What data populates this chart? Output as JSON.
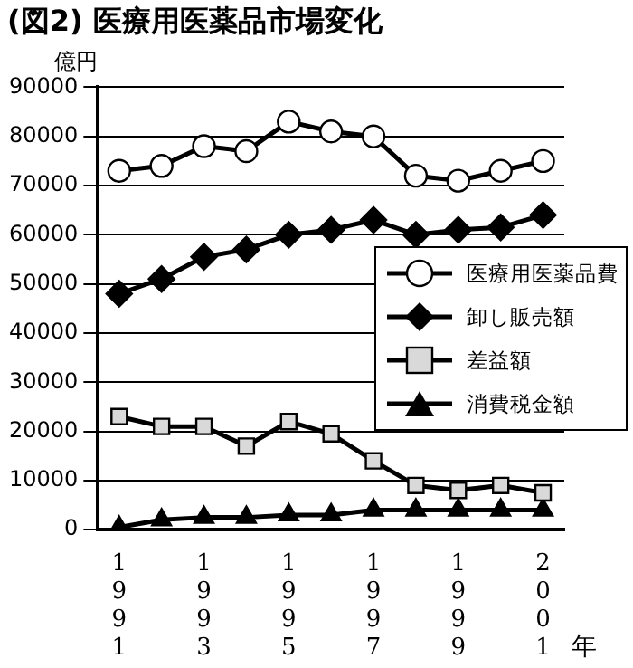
{
  "chart_data": {
    "type": "line",
    "title": "(図2) 医療用医薬品市場変化",
    "ylabel": "億円",
    "xlabel": "年",
    "categories": [
      "1991",
      null,
      "1993",
      null,
      "1995",
      null,
      "1997",
      null,
      "1999",
      null,
      "2001"
    ],
    "series": [
      {
        "name": "医療用医薬品費",
        "color": "#000000",
        "marker": "circle",
        "values": [
          73000,
          74000,
          78000,
          77000,
          83000,
          81000,
          80000,
          72000,
          71000,
          73000,
          75000
        ]
      },
      {
        "name": "卸し販売額",
        "color": "#000000",
        "marker": "diamond",
        "values": [
          48000,
          51000,
          55500,
          57000,
          60000,
          61000,
          63000,
          60000,
          61000,
          61500,
          64000
        ]
      },
      {
        "name": "差益額",
        "color": "#000000",
        "marker": "square",
        "values": [
          23000,
          21000,
          21000,
          17000,
          22000,
          19500,
          14000,
          9000,
          8000,
          9000,
          7500
        ]
      },
      {
        "name": "消費税金額",
        "color": "#000000",
        "marker": "triangle",
        "values": [
          500,
          2000,
          2500,
          2500,
          3000,
          3000,
          4000,
          4000,
          4000,
          4000,
          4000
        ]
      }
    ],
    "ylim": [
      0,
      90000
    ],
    "yticks": [
      0,
      10000,
      20000,
      30000,
      40000,
      50000,
      60000,
      70000,
      80000,
      90000
    ],
    "grid": "y",
    "legend": "center right",
    "line_style": "solid"
  }
}
